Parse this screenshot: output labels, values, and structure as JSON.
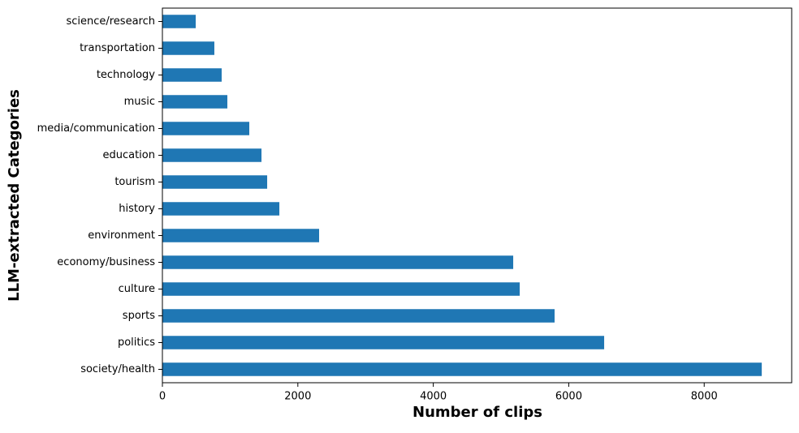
{
  "chart_data": {
    "type": "barh",
    "xlabel": "Number of clips",
    "ylabel": "LLM-extracted Categories",
    "categories": [
      "society/health",
      "politics",
      "sports",
      "culture",
      "economy/business",
      "environment",
      "history",
      "tourism",
      "education",
      "media/communication",
      "music",
      "technology",
      "transportation",
      "science/research"
    ],
    "values": [
      8850,
      6523,
      5791,
      5276,
      5180,
      2314,
      1727,
      1547,
      1463,
      1283,
      959,
      875,
      767,
      492
    ],
    "color": "#1f77b4",
    "xlim": [
      0,
      9292
    ],
    "xticks": [
      0,
      2000,
      4000,
      6000,
      8000
    ]
  }
}
